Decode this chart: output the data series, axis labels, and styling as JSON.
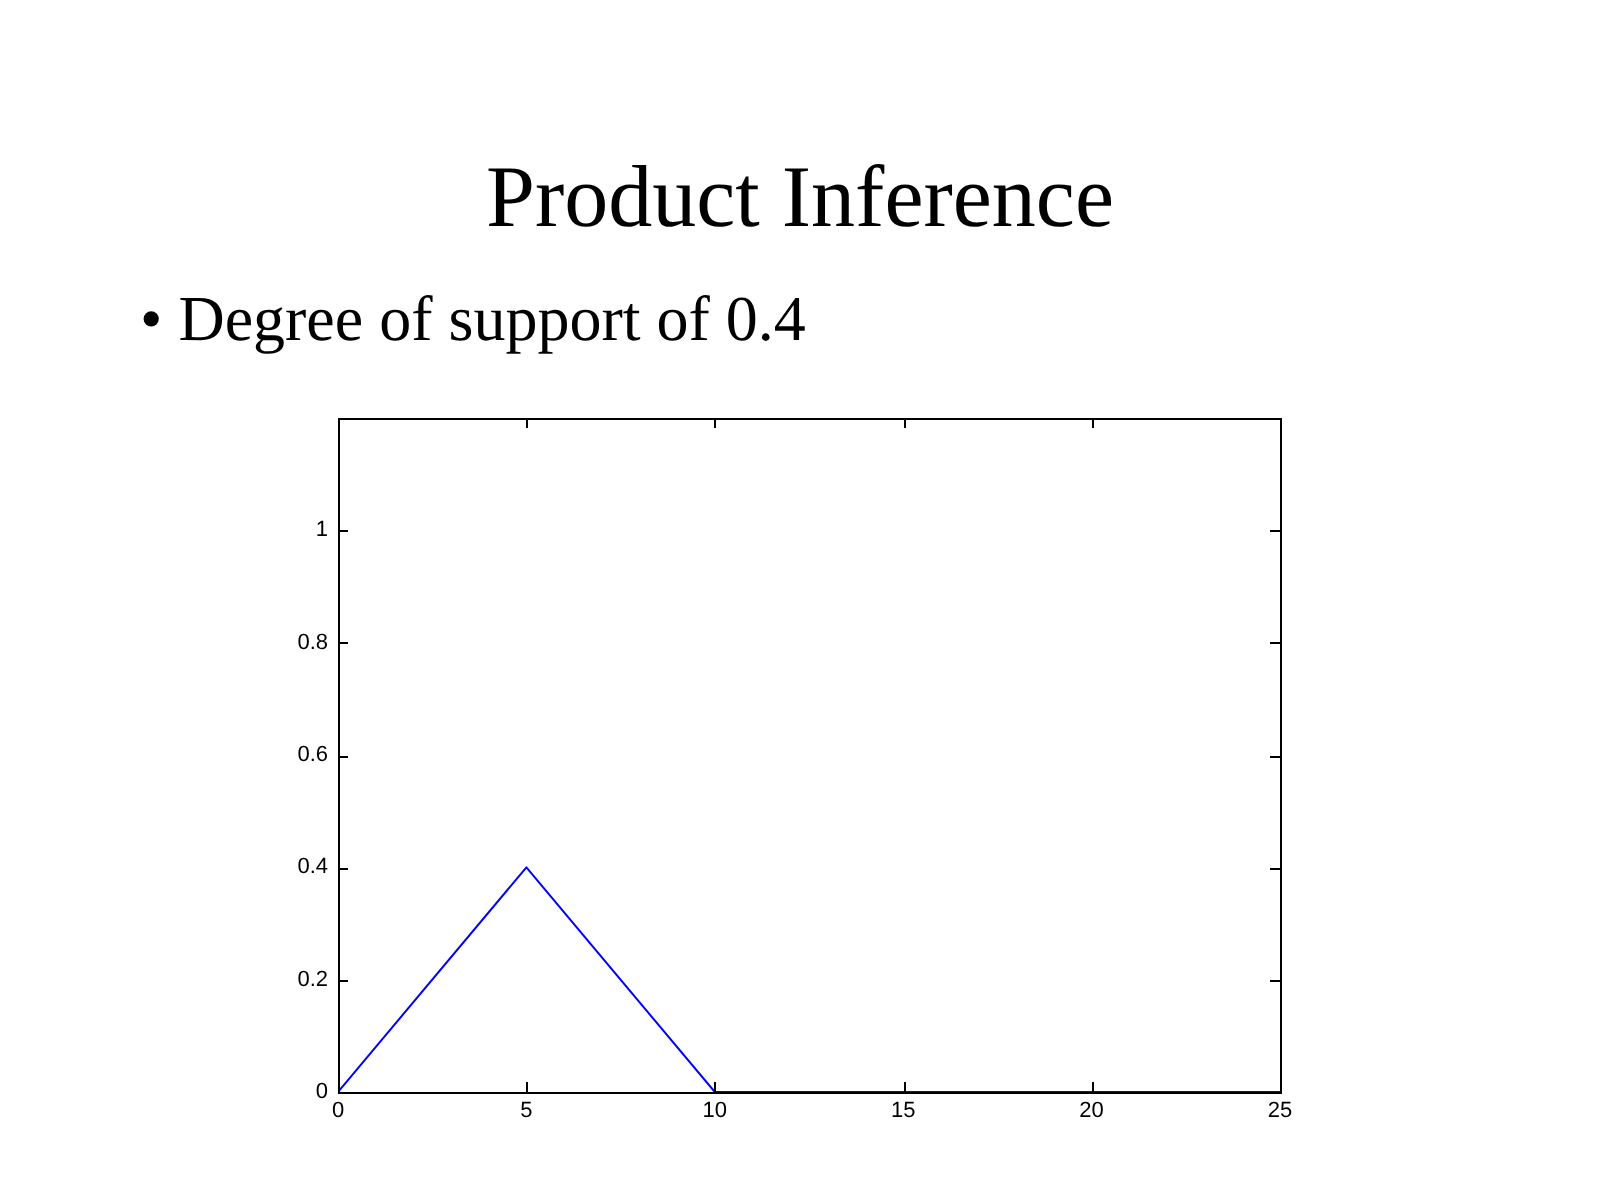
{
  "chart_data": {
    "type": "line",
    "title": "Product Inference",
    "subtitle": "• Degree of support of 0.4",
    "x": [
      0,
      5,
      10,
      25
    ],
    "series": [
      {
        "color": "#0000ff",
        "values": [
          0,
          0.4,
          0,
          0
        ]
      }
    ],
    "xlim": [
      0,
      25
    ],
    "xticks": [
      0,
      5,
      10,
      15,
      20,
      25
    ],
    "ylim": [
      0,
      1.2
    ],
    "yticks": [
      0,
      0.2,
      0.4,
      0.6,
      0.8,
      1
    ],
    "line_style": "solid"
  }
}
